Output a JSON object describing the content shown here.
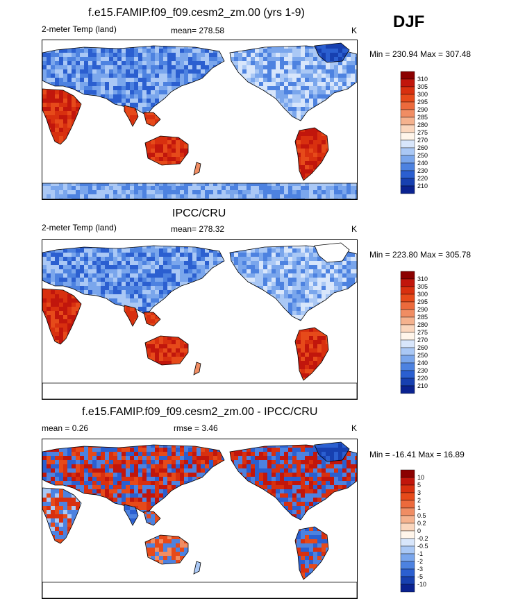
{
  "season": "DJF",
  "panels": [
    {
      "id": "model",
      "title": "f.e15.FAMIP.f09_f09.cesm2_zm.00 (yrs 1-9)",
      "variable": "2-meter Temp (land)",
      "stat": "mean= 278.58",
      "units": "K",
      "minmax": "Min = 230.94 Max = 307.48",
      "colorbar": {
        "labels": [
          "310",
          "305",
          "300",
          "295",
          "290",
          "285",
          "280",
          "275",
          "270",
          "260",
          "250",
          "240",
          "230",
          "220",
          "210"
        ],
        "colors": [
          "#8b0000",
          "#c1160c",
          "#d8300f",
          "#e64a1a",
          "#ec6a3c",
          "#f08d63",
          "#f5b28e",
          "#fad6bd",
          "#fff5ea",
          "#d8e6fb",
          "#aac8f5",
          "#7aa6ec",
          "#4d82e0",
          "#2b5fd0",
          "#1740b0",
          "#0a2290"
        ]
      }
    },
    {
      "id": "obs",
      "title": "IPCC/CRU",
      "variable": "2-meter Temp (land)",
      "stat": "mean= 278.32",
      "units": "K",
      "minmax": "Min = 223.80 Max = 305.78",
      "colorbar": {
        "labels": [
          "310",
          "305",
          "300",
          "295",
          "290",
          "285",
          "280",
          "275",
          "270",
          "260",
          "250",
          "240",
          "230",
          "220",
          "210"
        ],
        "colors": [
          "#8b0000",
          "#c1160c",
          "#d8300f",
          "#e64a1a",
          "#ec6a3c",
          "#f08d63",
          "#f5b28e",
          "#fad6bd",
          "#fff5ea",
          "#d8e6fb",
          "#aac8f5",
          "#7aa6ec",
          "#4d82e0",
          "#2b5fd0",
          "#1740b0",
          "#0a2290"
        ]
      }
    },
    {
      "id": "diff",
      "title": "f.e15.FAMIP.f09_f09.cesm2_zm.00 - IPCC/CRU",
      "stat_mean": "mean =   0.26",
      "stat_rmse": "rmse =   3.46",
      "units": "K",
      "minmax": "Min = -16.41 Max =  16.89",
      "colorbar": {
        "labels": [
          "10",
          "5",
          "3",
          "2",
          "1",
          "0.5",
          "0.2",
          "0",
          "-0.2",
          "-0.5",
          "-1",
          "-2",
          "-3",
          "-5",
          "-10"
        ],
        "colors": [
          "#8b0000",
          "#c1160c",
          "#d8300f",
          "#e64a1a",
          "#ec6a3c",
          "#f08d63",
          "#f5b28e",
          "#fad6bd",
          "#fff5ea",
          "#d8e6fb",
          "#aac8f5",
          "#7aa6ec",
          "#4d82e0",
          "#2b5fd0",
          "#1740b0",
          "#0a2290"
        ]
      }
    }
  ],
  "chart_data": [
    {
      "type": "heatmap",
      "title": "f.e15.FAMIP.f09_f09.cesm2_zm.00 (yrs 1-9)",
      "variable": "2-meter Temp (land)",
      "units": "K",
      "mean": 278.58,
      "min": 230.94,
      "max": 307.48,
      "levels": [
        210,
        220,
        230,
        240,
        250,
        260,
        270,
        275,
        280,
        285,
        290,
        295,
        300,
        305,
        310
      ]
    },
    {
      "type": "heatmap",
      "title": "IPCC/CRU",
      "variable": "2-meter Temp (land)",
      "units": "K",
      "mean": 278.32,
      "min": 223.8,
      "max": 305.78,
      "levels": [
        210,
        220,
        230,
        240,
        250,
        260,
        270,
        275,
        280,
        285,
        290,
        295,
        300,
        305,
        310
      ]
    },
    {
      "type": "heatmap",
      "title": "f.e15.FAMIP.f09_f09.cesm2_zm.00 - IPCC/CRU",
      "units": "K",
      "mean": 0.26,
      "rmse": 3.46,
      "min": -16.41,
      "max": 16.89,
      "levels": [
        -10,
        -5,
        -3,
        -2,
        -1,
        -0.5,
        -0.2,
        0,
        0.2,
        0.5,
        1,
        2,
        3,
        5,
        10
      ]
    }
  ]
}
